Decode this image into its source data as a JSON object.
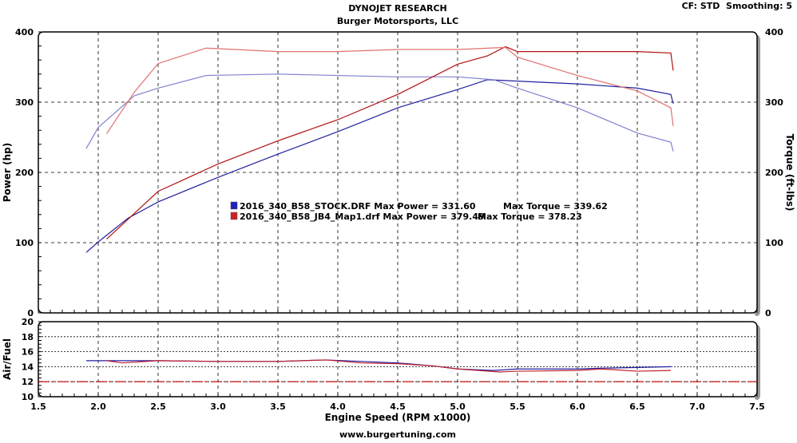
{
  "header": {
    "title": "DYNOJET RESEARCH",
    "subtitle": "Burger Motorsports, LLC",
    "settings": "CF: STD  Smoothing: 5"
  },
  "footer": {
    "url": "www.burgertuning.com"
  },
  "colors": {
    "stock": "#2020a0",
    "stock_light": "#8080d0",
    "tuned": "#b01010",
    "tuned_light": "#e07070",
    "reference": "#c00000"
  },
  "chart_data": [
    {
      "type": "line",
      "xlabel": "Engine Speed (RPM x1000)",
      "ylabel": "Power (hp)",
      "y2label": "Torque (ft-lbs)",
      "xlim": [
        1.5,
        7.5
      ],
      "ylim": [
        0,
        400
      ],
      "y2lim": [
        0,
        400
      ],
      "xticks": [
        "1.5",
        "2.0",
        "2.5",
        "3.0",
        "3.5",
        "4.0",
        "4.5",
        "5.0",
        "5.5",
        "6.0",
        "6.5",
        "7.0",
        "7.5"
      ],
      "yticks": [
        "0",
        "100",
        "200",
        "300",
        "400"
      ],
      "grid": true,
      "legend": {
        "placement": "center-left",
        "entries": [
          {
            "file": "2016_340_B58_STOCK.DRF",
            "power": "Max Power = 331.60",
            "torque": "Max Torque = 339.62",
            "color": "#2020c0"
          },
          {
            "file": "2016_340_B58_JB4_Map1.drf",
            "power": "Max Power = 379.49",
            "torque": "Max Torque = 378.23",
            "color": "#d02020"
          }
        ]
      },
      "series": [
        {
          "file": "2016_340_B58_STOCK.DRF",
          "measure": "power",
          "color": "#2020a0",
          "x": [
            1.9,
            2.0,
            2.25,
            2.5,
            3.0,
            3.5,
            4.0,
            4.5,
            5.0,
            5.25,
            5.5,
            6.0,
            6.5,
            6.78,
            6.8
          ],
          "y": [
            86,
            101,
            135,
            158,
            193,
            226,
            258,
            292,
            318,
            332,
            330,
            326,
            320,
            311,
            298
          ]
        },
        {
          "file": "2016_340_B58_STOCK.DRF",
          "measure": "torque",
          "color": "#8080d0",
          "x": [
            1.9,
            2.0,
            2.3,
            2.5,
            2.9,
            3.5,
            4.0,
            4.5,
            5.0,
            5.3,
            5.5,
            6.0,
            6.5,
            6.78,
            6.8
          ],
          "y": [
            234,
            264,
            309,
            320,
            338,
            340,
            338,
            336,
            336,
            332,
            320,
            292,
            256,
            243,
            230
          ]
        },
        {
          "file": "2016_340_B58_JB4_Map1.drf",
          "measure": "power",
          "color": "#b01010",
          "x": [
            2.07,
            2.5,
            3.0,
            3.5,
            4.0,
            4.5,
            5.0,
            5.25,
            5.4,
            5.5,
            6.0,
            6.5,
            6.78,
            6.8
          ],
          "y": [
            105,
            173,
            212,
            245,
            275,
            311,
            354,
            366,
            379,
            372,
            372,
            372,
            370,
            345
          ]
        },
        {
          "file": "2016_340_B58_JB4_Map1.drf",
          "measure": "torque",
          "color": "#e07070",
          "x": [
            2.07,
            2.3,
            2.5,
            2.9,
            3.5,
            4.0,
            4.5,
            5.0,
            5.4,
            5.5,
            6.0,
            6.5,
            6.78,
            6.8
          ],
          "y": [
            255,
            314,
            355,
            377,
            372,
            372,
            375,
            375,
            378,
            364,
            338,
            316,
            292,
            266
          ]
        }
      ]
    },
    {
      "type": "line",
      "xlabel": "Engine Speed (RPM x1000)",
      "ylabel": "Air/Fuel",
      "xlim": [
        1.5,
        7.5
      ],
      "ylim": [
        10,
        20
      ],
      "yticks": [
        "10",
        "12",
        "14",
        "16",
        "18",
        "20"
      ],
      "grid": true,
      "reference_line": 12,
      "series": [
        {
          "file": "2016_340_B58_STOCK.DRF",
          "color": "#2020a0",
          "x": [
            1.9,
            2.1,
            2.5,
            3.0,
            3.5,
            3.9,
            4.2,
            4.5,
            4.8,
            5.0,
            5.3,
            5.5,
            6.0,
            6.2,
            6.5,
            6.78
          ],
          "y": [
            14.8,
            14.8,
            14.8,
            14.7,
            14.7,
            14.9,
            14.7,
            14.5,
            14.1,
            13.7,
            13.5,
            13.7,
            13.7,
            13.8,
            13.9,
            14.0
          ]
        },
        {
          "file": "2016_340_B58_JB4_Map1.drf",
          "color": "#c02030",
          "x": [
            2.07,
            2.2,
            2.5,
            3.0,
            3.5,
            3.9,
            4.2,
            4.5,
            4.8,
            5.0,
            5.35,
            5.5,
            6.0,
            6.2,
            6.5,
            6.78
          ],
          "y": [
            14.8,
            14.5,
            14.8,
            14.7,
            14.7,
            14.9,
            14.5,
            14.4,
            14.1,
            13.7,
            13.3,
            13.4,
            13.5,
            13.7,
            13.4,
            13.5
          ]
        }
      ]
    }
  ]
}
